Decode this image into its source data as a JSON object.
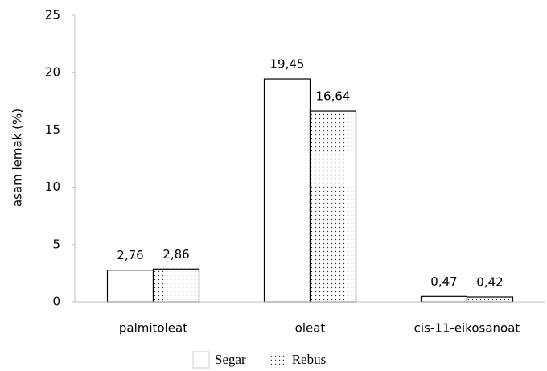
{
  "chart_data": {
    "type": "bar",
    "y_label": "asam lemak (%)",
    "categories": [
      "palmitoleat",
      "oleat",
      "cis-11-eikosanoat"
    ],
    "series": [
      {
        "name": "Segar",
        "color": "#ffffff",
        "values": [
          2.76,
          19.45,
          0.47
        ],
        "value_labels": [
          "2,76",
          "19,45",
          "0,47"
        ]
      },
      {
        "name": "Rebus",
        "color": "#ffffff",
        "pattern": "dots",
        "values": [
          2.86,
          16.64,
          0.42
        ],
        "value_labels": [
          "2,86",
          "16,64",
          "0,42"
        ]
      }
    ],
    "ylim": [
      0,
      25
    ],
    "yticks": [
      0,
      5,
      10,
      15,
      20,
      25
    ],
    "grid": false,
    "legend": "bottom"
  }
}
